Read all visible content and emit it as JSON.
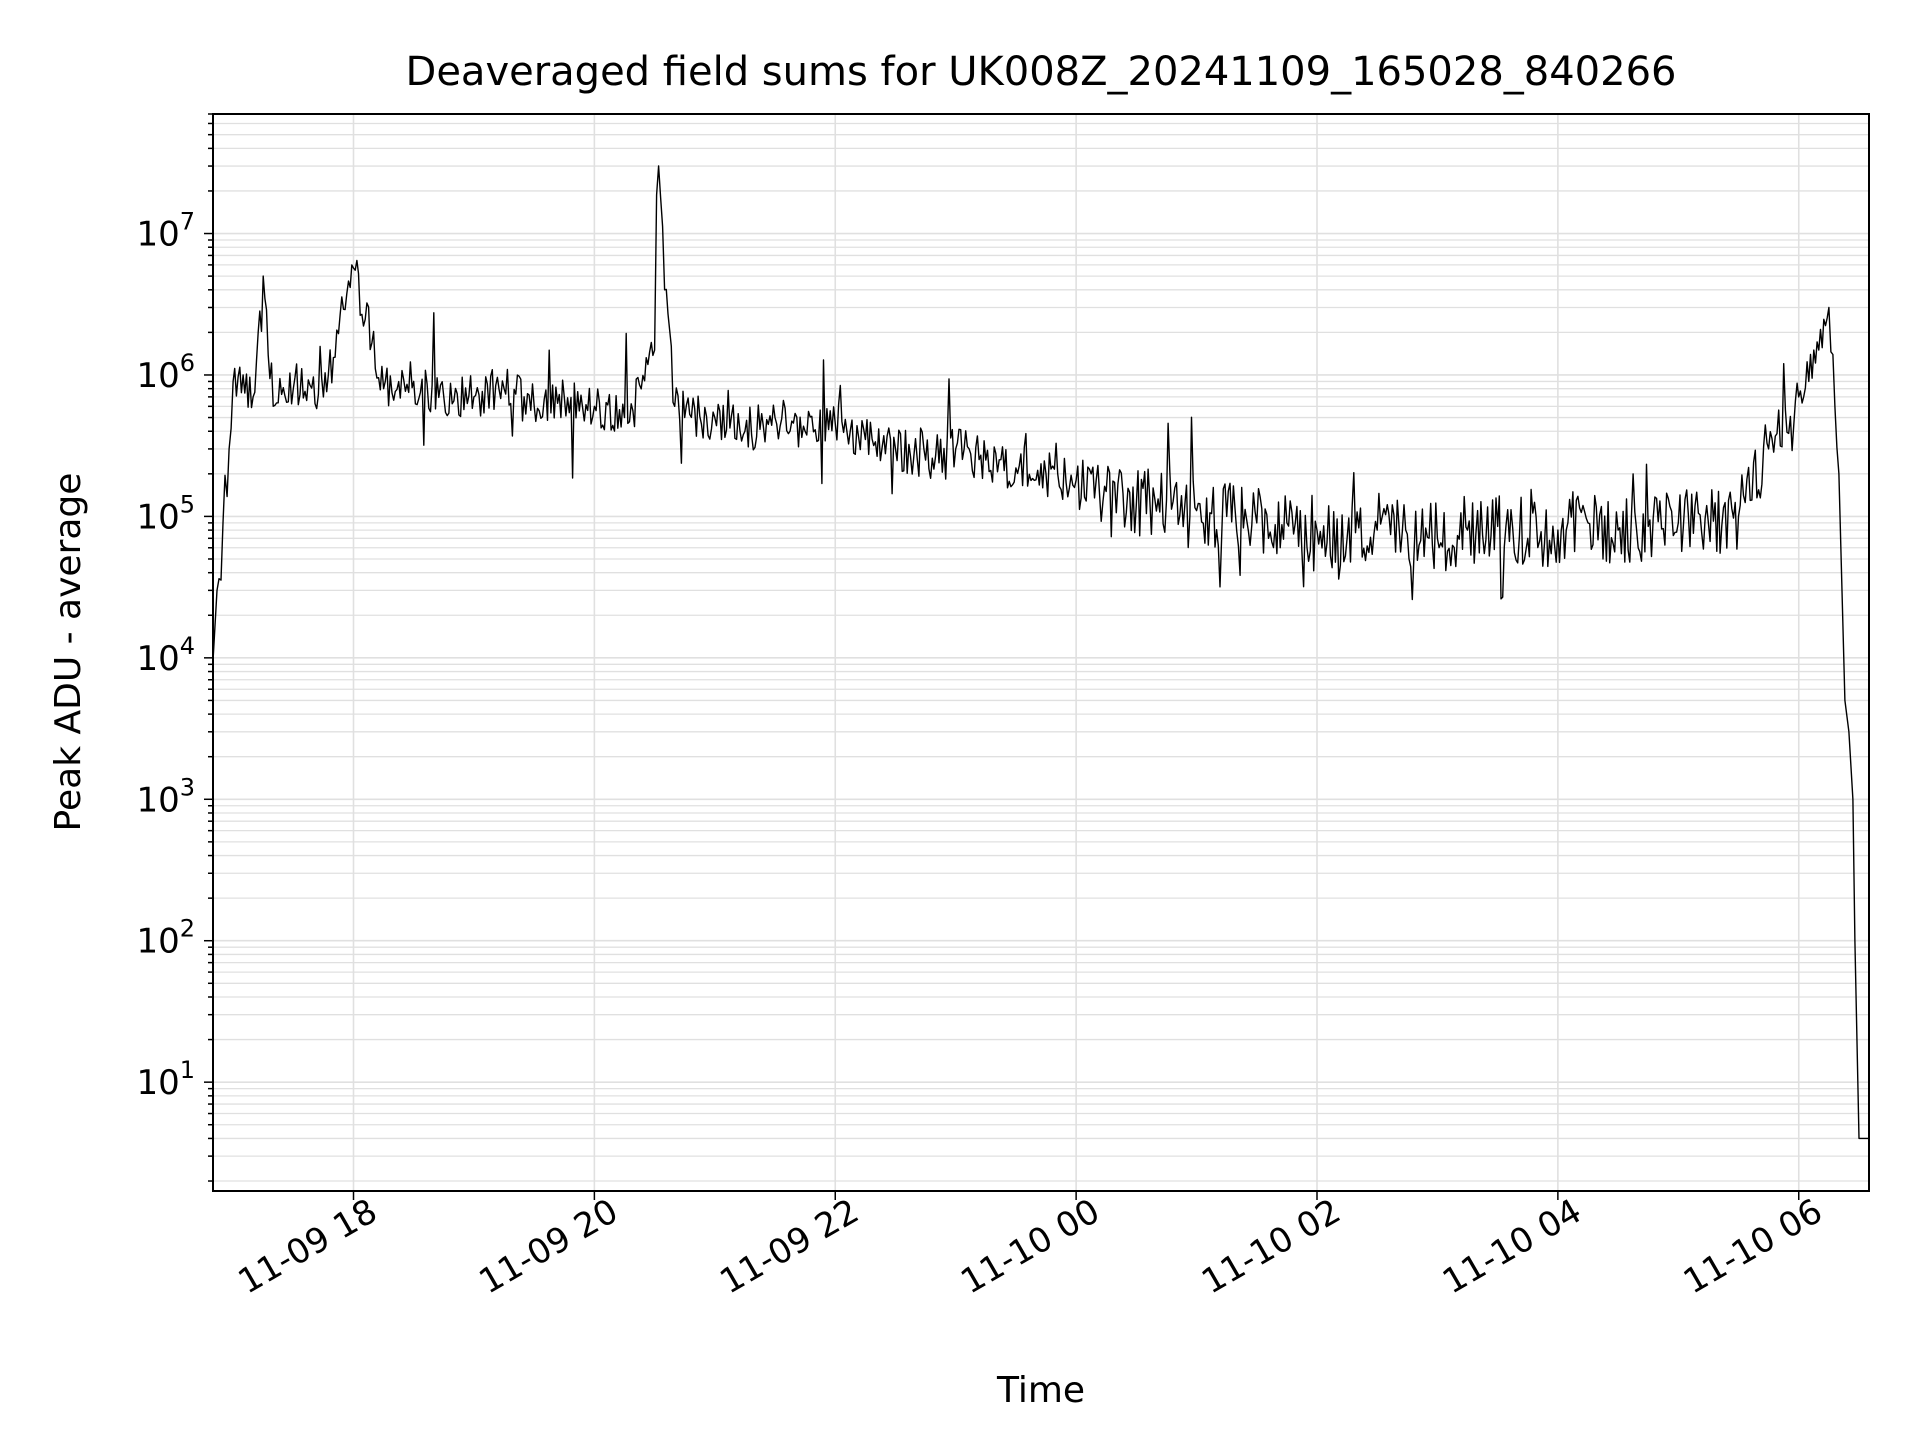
{
  "chart_data": {
    "type": "line",
    "title": "Deaveraged field sums for UK008Z_20241109_165028_840266",
    "xlabel": "Time",
    "ylabel": "Peak ADU - average",
    "y_scale": "log",
    "ylim": [
      1.7,
      70000000
    ],
    "xlim": [
      "2024-11-09 16:50",
      "2024-11-10 06:35"
    ],
    "grid": true,
    "line_color": "#000000",
    "grid_color": "#e0e0e0",
    "x_ticks": [
      {
        "value": "2024-11-09 18:00",
        "label": "11-09 18"
      },
      {
        "value": "2024-11-09 20:00",
        "label": "11-09 20"
      },
      {
        "value": "2024-11-09 22:00",
        "label": "11-09 22"
      },
      {
        "value": "2024-11-10 00:00",
        "label": "11-10 00"
      },
      {
        "value": "2024-11-10 02:00",
        "label": "11-10 02"
      },
      {
        "value": "2024-11-10 04:00",
        "label": "11-10 04"
      },
      {
        "value": "2024-11-10 06:00",
        "label": "11-10 06"
      }
    ],
    "y_ticks": [
      {
        "value": 10,
        "base": "10",
        "exp": "1"
      },
      {
        "value": 100,
        "base": "10",
        "exp": "2"
      },
      {
        "value": 1000,
        "base": "10",
        "exp": "3"
      },
      {
        "value": 10000,
        "base": "10",
        "exp": "4"
      },
      {
        "value": 100000,
        "base": "10",
        "exp": "5"
      },
      {
        "value": 1000000,
        "base": "10",
        "exp": "6"
      },
      {
        "value": 10000000,
        "base": "10",
        "exp": "7"
      }
    ],
    "series": [
      {
        "x": [
          "2024-11-09 16:50",
          "2024-11-09 16:52",
          "2024-11-09 16:55",
          "2024-11-09 16:58",
          "2024-11-09 17:00",
          "2024-11-09 17:05",
          "2024-11-09 17:10",
          "2024-11-09 17:15",
          "2024-11-09 17:20",
          "2024-11-09 17:30",
          "2024-11-09 17:45",
          "2024-11-09 18:00",
          "2024-11-09 18:15",
          "2024-11-09 18:30",
          "2024-11-09 18:45",
          "2024-11-09 19:00",
          "2024-11-09 19:15",
          "2024-11-09 19:30",
          "2024-11-09 19:45",
          "2024-11-09 20:00",
          "2024-11-09 20:15",
          "2024-11-09 20:30",
          "2024-11-09 20:32",
          "2024-11-09 20:35",
          "2024-11-09 20:40",
          "2024-11-09 20:45",
          "2024-11-09 21:00",
          "2024-11-09 21:15",
          "2024-11-09 21:30",
          "2024-11-09 21:45",
          "2024-11-09 22:00",
          "2024-11-09 22:15",
          "2024-11-09 22:30",
          "2024-11-09 22:45",
          "2024-11-09 23:00",
          "2024-11-09 23:15",
          "2024-11-09 23:30",
          "2024-11-09 23:45",
          "2024-11-10 00:00",
          "2024-11-10 00:15",
          "2024-11-10 00:30",
          "2024-11-10 00:45",
          "2024-11-10 01:00",
          "2024-11-10 01:15",
          "2024-11-10 01:30",
          "2024-11-10 01:45",
          "2024-11-10 02:00",
          "2024-11-10 02:15",
          "2024-11-10 02:30",
          "2024-11-10 02:45",
          "2024-11-10 03:00",
          "2024-11-10 03:15",
          "2024-11-10 03:30",
          "2024-11-10 03:45",
          "2024-11-10 04:00",
          "2024-11-10 04:15",
          "2024-11-10 04:30",
          "2024-11-10 04:45",
          "2024-11-10 05:00",
          "2024-11-10 05:15",
          "2024-11-10 05:30",
          "2024-11-10 05:45",
          "2024-11-10 06:00",
          "2024-11-10 06:05",
          "2024-11-10 06:10",
          "2024-11-10 06:15",
          "2024-11-10 06:18",
          "2024-11-10 06:20",
          "2024-11-10 06:23",
          "2024-11-10 06:25",
          "2024-11-10 06:27",
          "2024-11-10 06:28",
          "2024-11-10 06:30",
          "2024-11-10 06:35"
        ],
        "y": [
          9500,
          30000,
          90000,
          300000,
          900000,
          1000000,
          700000,
          5000000,
          600000,
          800000,
          700000,
          5700000,
          800000,
          900000,
          700000,
          700000,
          800000,
          600000,
          700000,
          600000,
          500000,
          1500000,
          30000000,
          4000000,
          600000,
          500000,
          500000,
          400000,
          500000,
          400000,
          450000,
          350000,
          300000,
          250000,
          300000,
          250000,
          220000,
          200000,
          180000,
          150000,
          120000,
          130000,
          110000,
          100000,
          90000,
          90000,
          80000,
          70000,
          80000,
          75000,
          70000,
          80000,
          85000,
          70000,
          80000,
          90000,
          80000,
          85000,
          90000,
          90000,
          100000,
          300000,
          700000,
          900000,
          1500000,
          3000000,
          600000,
          200000,
          5000,
          3000,
          1000,
          100,
          4,
          4
        ]
      }
    ]
  }
}
